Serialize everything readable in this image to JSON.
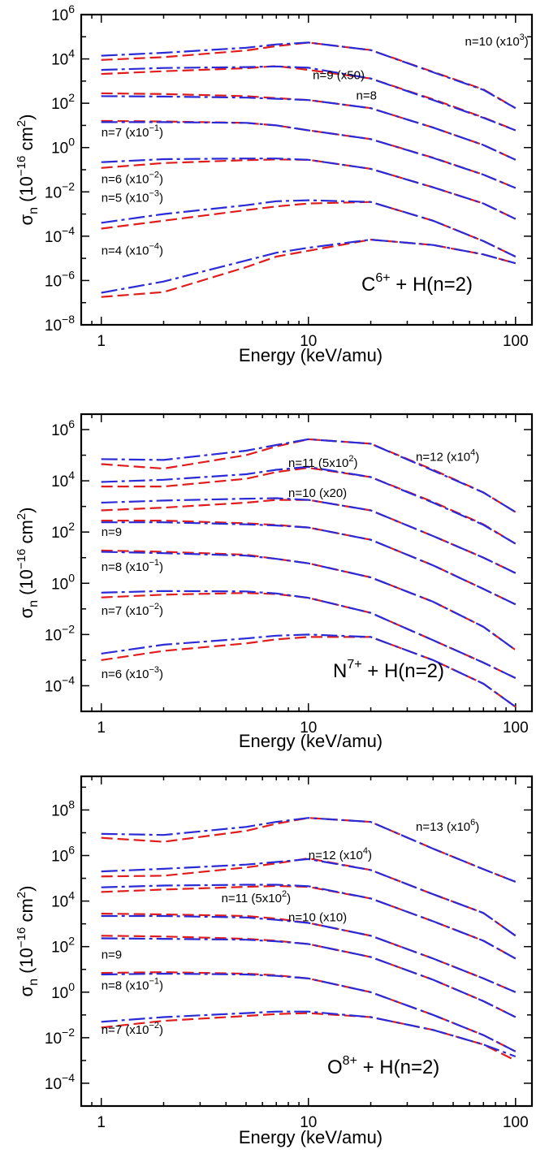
{
  "colors": {
    "calc_a": "#2a2ad6",
    "calc_b": "#e01c1c",
    "frame": "#000000"
  },
  "chart_data": [
    {
      "type": "line",
      "title": "",
      "system": {
        "ion": "C",
        "charge": "6+",
        "target": "+ H(n=2)"
      },
      "xlabel": "Energy (keV/amu)",
      "ylabel": {
        "symbol": "σ",
        "sub": "n",
        "unit_pre": "(10",
        "unit_exp": "−16",
        "unit_mid": " cm",
        "unit_sq": "2",
        "unit_post": ")"
      },
      "x_scale": "log",
      "y_scale": "log",
      "xlim": [
        0.8,
        120
      ],
      "ylim": [
        1e-08,
        1000000.0
      ],
      "x_ticks": [
        {
          "v": 1,
          "label": "1"
        },
        {
          "v": 10,
          "label": "10"
        },
        {
          "v": 100,
          "label": "100"
        }
      ],
      "y_ticks": [
        {
          "e": -8
        },
        {
          "e": -6
        },
        {
          "e": -4
        },
        {
          "e": -2
        },
        {
          "e": 0
        },
        {
          "e": 2
        },
        {
          "e": 4
        },
        {
          "e": 6
        }
      ],
      "energies": [
        1,
        2,
        5,
        7,
        10,
        20,
        40,
        70,
        100
      ],
      "series": [
        {
          "n": 10,
          "label": "n=10 (x10",
          "label_sup": "3",
          "label_post": ")",
          "label_at": [
            57,
            40000.0
          ],
          "a": [
            14000.0,
            19000.0,
            32000.0,
            45000.0,
            55000.0,
            25000.0,
            2500.0,
            400.0,
            60.0
          ],
          "b": [
            9000.0,
            12000.0,
            24000.0,
            38000.0,
            55000.0,
            25000.0,
            2600.0,
            420.0,
            60.0
          ]
        },
        {
          "n": 9,
          "label": "n=9 (x50)",
          "label_sup": "",
          "label_post": "",
          "label_at": [
            10.5,
            1200.0
          ],
          "a": [
            3200.0,
            3900.0,
            4300.0,
            4600.0,
            4000.0,
            1300.0,
            140.0,
            22.0,
            6
          ],
          "b": [
            2100.0,
            2800.0,
            3800.0,
            4800.0,
            3200.0,
            1300.0,
            150.0,
            23.0,
            6
          ]
        },
        {
          "n": 8,
          "label": "n=8",
          "label_sup": "",
          "label_post": "",
          "label_at": [
            17,
            150.0
          ],
          "a": [
            210.0,
            200.0,
            180.0,
            160.0,
            140.0,
            60.0,
            8,
            1.3,
            0.28
          ],
          "b": [
            280.0,
            260.0,
            210.0,
            170.0,
            140.0,
            60.0,
            8,
            1.3,
            0.28
          ]
        },
        {
          "n": 7,
          "label": "n=7 (x10",
          "label_sup": "−1",
          "label_post": ")",
          "label_at": [
            1,
            3.2
          ],
          "a": [
            14.0,
            14.0,
            13.0,
            10.0,
            6,
            2.4,
            0.34,
            0.06,
            0.015
          ],
          "b": [
            16.0,
            15.0,
            13.0,
            10.0,
            6,
            2.4,
            0.35,
            0.06,
            0.015
          ]
        },
        {
          "n": 6,
          "label": "n=6 (x10",
          "label_sup": "−2",
          "label_post": ")",
          "label_at": [
            1,
            0.025
          ],
          "a": [
            0.22,
            0.3,
            0.32,
            0.32,
            0.28,
            0.11,
            0.016,
            0.003,
            0.0006
          ],
          "b": [
            0.12,
            0.2,
            0.27,
            0.29,
            0.28,
            0.11,
            0.016,
            0.003,
            0.0006
          ]
        },
        {
          "n": 5,
          "label": "n=5 (x10",
          "label_sup": "−3",
          "label_post": ")",
          "label_at": [
            1,
            0.0035
          ],
          "a": [
            0.0004,
            0.001,
            0.0025,
            0.0038,
            0.0042,
            0.0035,
            0.0005,
            6e-05,
            1.2e-05
          ],
          "b": [
            0.00022,
            0.0005,
            0.0015,
            0.0022,
            0.003,
            0.0035,
            0.0005,
            6e-05,
            1.2e-05
          ]
        },
        {
          "n": 4,
          "label": "n=4 (x10",
          "label_sup": "−4",
          "label_post": ")",
          "label_at": [
            1,
            1.5e-05
          ],
          "a": [
            2.8e-07,
            9e-07,
            8e-06,
            1.8e-05,
            3e-05,
            7e-05,
            4e-05,
            1.5e-05,
            6e-06
          ],
          "b": [
            1.8e-07,
            3e-07,
            4e-06,
            1.2e-05,
            2.2e-05,
            7e-05,
            4e-05,
            1.5e-05,
            6e-06
          ]
        }
      ]
    },
    {
      "type": "line",
      "title": "",
      "system": {
        "ion": "N",
        "charge": "7+",
        "target": "+ H(n=2)"
      },
      "xlabel": "Energy (keV/amu)",
      "ylabel": {
        "symbol": "σ",
        "sub": "n",
        "unit_pre": "(10",
        "unit_exp": "−16",
        "unit_mid": " cm",
        "unit_sq": "2",
        "unit_post": ")"
      },
      "x_scale": "log",
      "y_scale": "log",
      "xlim": [
        0.8,
        120
      ],
      "ylim": [
        1e-05,
        4000000.0
      ],
      "x_ticks": [
        {
          "v": 1,
          "label": "1"
        },
        {
          "v": 10,
          "label": "10"
        },
        {
          "v": 100,
          "label": "100"
        }
      ],
      "y_ticks": [
        {
          "e": -4
        },
        {
          "e": -2
        },
        {
          "e": 0
        },
        {
          "e": 2
        },
        {
          "e": 4
        },
        {
          "e": 6
        }
      ],
      "energies": [
        1,
        2,
        5,
        7,
        10,
        20,
        40,
        70,
        100
      ],
      "series": [
        {
          "n": 12,
          "label": "n=12 (x10",
          "label_sup": "4",
          "label_post": ")",
          "label_at": [
            33,
            60000.0
          ],
          "a": [
            70000.0,
            65000.0,
            150000.0,
            250000.0,
            420000.0,
            280000.0,
            25000.0,
            3500.0,
            600.0
          ],
          "b": [
            45000.0,
            30000.0,
            100000.0,
            220000.0,
            420000.0,
            280000.0,
            27000.0,
            3500.0,
            600.0
          ]
        },
        {
          "n": 11,
          "label": "n=11 (5x10",
          "label_sup": "2",
          "label_post": ")",
          "label_at": [
            8,
            35000.0
          ],
          "a": [
            9000.0,
            11000.0,
            18000.0,
            27000.0,
            35000.0,
            14000.0,
            1400.0,
            190.0,
            35.0
          ],
          "b": [
            6000.0,
            6000.0,
            12000.0,
            22000.0,
            32000.0,
            14000.0,
            1500.0,
            200.0,
            35.0
          ]
        },
        {
          "n": 10,
          "label": "n=10 (x20)",
          "label_sup": "",
          "label_post": "",
          "label_at": [
            8,
            2300.0
          ],
          "a": [
            1400.0,
            1700.0,
            2000.0,
            2100.0,
            1800.0,
            700.0,
            70.0,
            10.0,
            2.5
          ],
          "b": [
            700.0,
            900.0,
            1400.0,
            1800.0,
            1800.0,
            700.0,
            70.0,
            10.0,
            2.5
          ]
        },
        {
          "n": 9,
          "label": "n=9",
          "label_sup": "",
          "label_post": "",
          "label_at": [
            1,
            70.0
          ],
          "a": [
            240.0,
            240.0,
            200.0,
            180.0,
            150.0,
            50.0,
            5,
            0.6,
            0.15
          ],
          "b": [
            280.0,
            280.0,
            220.0,
            190.0,
            150.0,
            50.0,
            5,
            0.6,
            0.15
          ]
        },
        {
          "n": 8,
          "label": "n=8 (x10",
          "label_sup": "−1",
          "label_post": ")",
          "label_at": [
            1,
            3
          ],
          "a": [
            17.0,
            15.0,
            12.0,
            9,
            6,
            1.7,
            0.19,
            0.02,
            0.0025
          ],
          "b": [
            19.0,
            17.0,
            13.0,
            9,
            6,
            1.7,
            0.19,
            0.02,
            0.0025
          ]
        },
        {
          "n": 7,
          "label": "n=7 (x10",
          "label_sup": "−2",
          "label_post": ")",
          "label_at": [
            1,
            0.06
          ],
          "a": [
            0.43,
            0.5,
            0.48,
            0.4,
            0.27,
            0.07,
            0.006,
            0.0008,
            0.0002
          ],
          "b": [
            0.28,
            0.36,
            0.42,
            0.38,
            0.27,
            0.07,
            0.006,
            0.0008,
            0.0002
          ]
        },
        {
          "n": 6,
          "label": "n=6 (x10",
          "label_sup": "−3",
          "label_post": ")",
          "label_at": [
            1,
            0.0002
          ],
          "a": [
            0.0018,
            0.004,
            0.007,
            0.009,
            0.01,
            0.008,
            0.001,
            0.00012,
            1.5e-05
          ],
          "b": [
            0.001,
            0.0023,
            0.0045,
            0.0065,
            0.008,
            0.008,
            0.001,
            0.00012,
            1.5e-05
          ]
        }
      ]
    },
    {
      "type": "line",
      "title": "",
      "system": {
        "ion": "O",
        "charge": "8+",
        "target": "+ H(n=2)"
      },
      "xlabel": "Energy (keV/amu)",
      "ylabel": {
        "symbol": "σ",
        "sub": "n",
        "unit_pre": "(10",
        "unit_exp": "−16",
        "unit_mid": " cm",
        "unit_sq": "2",
        "unit_post": ")"
      },
      "x_scale": "log",
      "y_scale": "log",
      "xlim": [
        0.8,
        120
      ],
      "ylim": [
        1e-05,
        3000000000.0
      ],
      "x_ticks": [
        {
          "v": 1,
          "label": "1"
        },
        {
          "v": 10,
          "label": "10"
        },
        {
          "v": 100,
          "label": "100"
        }
      ],
      "y_ticks": [
        {
          "e": -4
        },
        {
          "e": -2
        },
        {
          "e": 0
        },
        {
          "e": 2
        },
        {
          "e": 4
        },
        {
          "e": 6
        },
        {
          "e": 8
        }
      ],
      "energies": [
        1,
        2,
        5,
        7,
        10,
        20,
        40,
        70,
        100
      ],
      "series": [
        {
          "n": 13,
          "label": "n=13 (x10",
          "label_sup": "6",
          "label_post": ")",
          "label_at": [
            33,
            12000000.0
          ],
          "a": [
            9000000.0,
            8000000.0,
            18000000.0,
            30000000.0,
            45000000.0,
            30000000.0,
            2000000.0,
            250000.0,
            70000.0
          ],
          "b": [
            6000000.0,
            4000000.0,
            12000000.0,
            25000000.0,
            45000000.0,
            30000000.0,
            2000000.0,
            250000.0,
            70000.0
          ]
        },
        {
          "n": 12,
          "label": "n=12 (x10",
          "label_sup": "4",
          "label_post": ")",
          "label_at": [
            10,
            700000.0
          ],
          "a": [
            200000.0,
            260000.0,
            400000.0,
            520000.0,
            700000.0,
            230000.0,
            20000.0,
            3000.0,
            300.0
          ],
          "b": [
            120000.0,
            130000.0,
            300000.0,
            450000.0,
            750000.0,
            230000.0,
            20000.0,
            3000.0,
            300.0
          ]
        },
        {
          "n": 11,
          "label": "n=11 (5x10",
          "label_sup": "2",
          "label_post": ")",
          "label_at": [
            3.8,
            9000.0
          ],
          "a": [
            40000.0,
            48000.0,
            52000.0,
            52000.0,
            45000.0,
            13000.0,
            1300.0,
            180.0,
            30.0
          ],
          "b": [
            25000.0,
            32000.0,
            42000.0,
            46000.0,
            42000.0,
            13000.0,
            1300.0,
            180.0,
            30.0
          ]
        },
        {
          "n": 10,
          "label": "n=10 (x10)",
          "label_sup": "",
          "label_post": "",
          "label_at": [
            8,
            1300.0
          ],
          "a": [
            2200.0,
            2200.0,
            1900.0,
            1500.0,
            1100.0,
            300.0,
            30.0,
            4,
            1
          ],
          "b": [
            2800.0,
            2600.0,
            2200.0,
            1700.0,
            1100.0,
            300.0,
            30.0,
            4,
            1
          ]
        },
        {
          "n": 9,
          "label": "n=9",
          "label_sup": "",
          "label_post": "",
          "label_at": [
            1,
            30.0
          ],
          "a": [
            230.0,
            220.0,
            200.0,
            170.0,
            130.0,
            35.0,
            3.5,
            0.4,
            0.08
          ],
          "b": [
            300.0,
            280.0,
            220.0,
            180.0,
            130.0,
            35.0,
            3.5,
            0.4,
            0.08
          ]
        },
        {
          "n": 8,
          "label": "n=8 (x10",
          "label_sup": "−1",
          "label_post": ")",
          "label_at": [
            1,
            1.3
          ],
          "a": [
            6,
            6.5,
            6,
            5.2,
            4,
            1,
            0.1,
            0.013,
            0.0025
          ],
          "b": [
            7,
            7.5,
            6.5,
            5.5,
            4,
            1,
            0.1,
            0.013,
            0.0025
          ]
        },
        {
          "n": 7,
          "label": "n=7 (x10",
          "label_sup": "−2",
          "label_post": ")",
          "label_at": [
            1,
            0.015
          ],
          "a": [
            0.05,
            0.08,
            0.12,
            0.14,
            0.14,
            0.08,
            0.022,
            0.005,
            0.0015
          ],
          "b": [
            0.028,
            0.055,
            0.09,
            0.11,
            0.12,
            0.08,
            0.022,
            0.005,
            0.001
          ]
        }
      ]
    }
  ]
}
